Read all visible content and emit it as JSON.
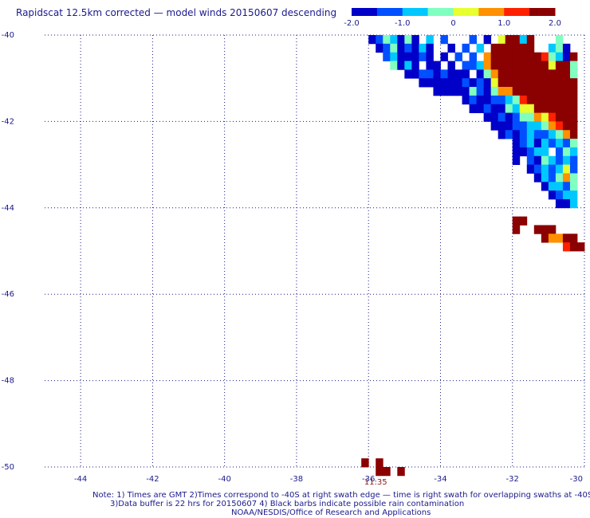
{
  "chart_data": {
    "type": "heatmap",
    "title": "Rapidscat 12.5km corrected — model winds 20150607 descending",
    "xlabel": "",
    "ylabel": "",
    "xlim": [
      -45,
      -30
    ],
    "ylim": [
      -50,
      -40
    ],
    "x_ticks": [
      -44,
      -42,
      -40,
      -38,
      -36,
      -34,
      -32,
      -30
    ],
    "y_ticks": [
      -40,
      -42,
      -44,
      -46,
      -48,
      -50
    ],
    "x_tick_labels": [
      "-44",
      "-42",
      "-40",
      "-38",
      "-36",
      "-34",
      "-32",
      "-30"
    ],
    "y_tick_labels": [
      "-40",
      "-42",
      "-44",
      "-46",
      "-48",
      "-50"
    ],
    "grid": true,
    "colorbar": {
      "range": [
        -2.0,
        2.0
      ],
      "tick_values": [
        -2.0,
        -1.0,
        0,
        1.0,
        2.0
      ],
      "tick_labels": [
        "-2.0",
        "-1.0",
        "0",
        "1.0",
        "2.0"
      ],
      "colors": [
        "#0000c8",
        "#0050ff",
        "#00c8ff",
        "#80ffc0",
        "#e8ff30",
        "#ff9000",
        "#ff2000",
        "#8b0000"
      ]
    },
    "cell_size_deg": 0.2,
    "swath_cells": [
      [
        -35.9,
        -40.1,
        -2.0
      ],
      [
        -35.7,
        -40.1,
        -1.5
      ],
      [
        -35.5,
        -40.1,
        -0.3
      ],
      [
        -35.3,
        -40.1,
        -0.7
      ],
      [
        -35.1,
        -40.1,
        -1.8
      ],
      [
        -34.9,
        -40.1,
        -0.1
      ],
      [
        -34.7,
        -40.1,
        -2.0
      ],
      [
        -34.3,
        -40.1,
        -1.0
      ],
      [
        -33.9,
        -40.1,
        -1.3
      ],
      [
        -33.1,
        -40.1,
        -1.2
      ],
      [
        -32.7,
        -40.1,
        -1.8
      ],
      [
        -32.3,
        -40.1,
        0.3
      ],
      [
        -32.1,
        -40.1,
        2.0
      ],
      [
        -31.9,
        -40.1,
        1.7
      ],
      [
        -31.7,
        -40.1,
        -0.6
      ],
      [
        -31.5,
        -40.1,
        1.9
      ],
      [
        -30.7,
        -40.1,
        -0.2
      ],
      [
        -35.7,
        -40.3,
        -1.8
      ],
      [
        -35.5,
        -40.3,
        -1.2
      ],
      [
        -35.3,
        -40.3,
        -0.5
      ],
      [
        -35.1,
        -40.3,
        -1.6
      ],
      [
        -34.9,
        -40.3,
        -1.4
      ],
      [
        -34.7,
        -40.3,
        -2.0
      ],
      [
        -34.5,
        -40.3,
        -0.8
      ],
      [
        -34.3,
        -40.3,
        -1.7
      ],
      [
        -33.7,
        -40.3,
        -2.0
      ],
      [
        -33.3,
        -40.3,
        -1.1
      ],
      [
        -32.9,
        -40.3,
        -0.9
      ],
      [
        -32.5,
        -40.3,
        2.0
      ],
      [
        -32.3,
        -40.3,
        2.0
      ],
      [
        -32.1,
        -40.3,
        2.0
      ],
      [
        -31.9,
        -40.3,
        2.0
      ],
      [
        -31.7,
        -40.3,
        2.0
      ],
      [
        -31.5,
        -40.3,
        1.7
      ],
      [
        -30.9,
        -40.3,
        -0.9
      ],
      [
        -30.7,
        -40.3,
        -0.5
      ],
      [
        -30.5,
        -40.3,
        -2.0
      ],
      [
        -35.5,
        -40.5,
        -1.1
      ],
      [
        -35.3,
        -40.5,
        -0.9
      ],
      [
        -35.1,
        -40.5,
        -2.0
      ],
      [
        -34.9,
        -40.5,
        -1.9
      ],
      [
        -34.7,
        -40.5,
        -1.6
      ],
      [
        -34.5,
        -40.5,
        -1.3
      ],
      [
        -34.3,
        -40.5,
        -1.8
      ],
      [
        -33.9,
        -40.5,
        -1.7
      ],
      [
        -33.5,
        -40.5,
        -1.4
      ],
      [
        -33.1,
        -40.5,
        -1.3
      ],
      [
        -32.7,
        -40.5,
        0.7
      ],
      [
        -32.5,
        -40.5,
        2.0
      ],
      [
        -32.3,
        -40.5,
        2.0
      ],
      [
        -32.1,
        -40.5,
        2.0
      ],
      [
        -31.9,
        -40.5,
        2.0
      ],
      [
        -31.7,
        -40.5,
        2.0
      ],
      [
        -31.5,
        -40.5,
        2.0
      ],
      [
        -31.3,
        -40.5,
        1.9
      ],
      [
        -31.1,
        -40.5,
        1.2
      ],
      [
        -30.9,
        -40.5,
        -0.4
      ],
      [
        -30.7,
        -40.5,
        -0.7
      ],
      [
        -30.5,
        -40.5,
        -1.9
      ],
      [
        -30.3,
        -40.5,
        1.8
      ],
      [
        -35.3,
        -40.7,
        -0.4
      ],
      [
        -35.1,
        -40.7,
        -2.0
      ],
      [
        -34.9,
        -40.7,
        -0.6
      ],
      [
        -34.7,
        -40.7,
        -1.9
      ],
      [
        -34.3,
        -40.7,
        -1.8
      ],
      [
        -34.1,
        -40.7,
        -2.0
      ],
      [
        -33.7,
        -40.7,
        -2.0
      ],
      [
        -33.3,
        -40.7,
        -1.5
      ],
      [
        -33.1,
        -40.7,
        -1.2
      ],
      [
        -32.9,
        -40.7,
        -0.6
      ],
      [
        -32.7,
        -40.7,
        0.8
      ],
      [
        -32.5,
        -40.7,
        1.8
      ],
      [
        -32.3,
        -40.7,
        2.0
      ],
      [
        -32.1,
        -40.7,
        2.0
      ],
      [
        -31.9,
        -40.7,
        1.7
      ],
      [
        -31.7,
        -40.7,
        1.9
      ],
      [
        -31.5,
        -40.7,
        2.0
      ],
      [
        -31.3,
        -40.7,
        2.0
      ],
      [
        -31.1,
        -40.7,
        2.0
      ],
      [
        -30.9,
        -40.7,
        0.3
      ],
      [
        -30.7,
        -40.7,
        2.0
      ],
      [
        -30.5,
        -40.7,
        1.6
      ],
      [
        -30.3,
        -40.7,
        -0.1
      ],
      [
        -34.9,
        -40.9,
        -1.9
      ],
      [
        -34.7,
        -40.9,
        -2.0
      ],
      [
        -34.5,
        -40.9,
        -1.1
      ],
      [
        -34.3,
        -40.9,
        -1.5
      ],
      [
        -34.1,
        -40.9,
        -2.0
      ],
      [
        -33.9,
        -40.9,
        -1.1
      ],
      [
        -33.7,
        -40.9,
        -2.0
      ],
      [
        -33.5,
        -40.9,
        -2.0
      ],
      [
        -33.3,
        -40.9,
        -1.8
      ],
      [
        -32.9,
        -40.9,
        -2.0
      ],
      [
        -32.7,
        -40.9,
        -0.4
      ],
      [
        -32.5,
        -40.9,
        0.7
      ],
      [
        -32.3,
        -40.9,
        2.0
      ],
      [
        -32.1,
        -40.9,
        2.0
      ],
      [
        -31.9,
        -40.9,
        2.0
      ],
      [
        -31.7,
        -40.9,
        1.8
      ],
      [
        -31.5,
        -40.9,
        2.0
      ],
      [
        -31.3,
        -40.9,
        2.0
      ],
      [
        -31.1,
        -40.9,
        2.0
      ],
      [
        -30.9,
        -40.9,
        2.0
      ],
      [
        -30.7,
        -40.9,
        2.0
      ],
      [
        -30.5,
        -40.9,
        1.7
      ],
      [
        -30.3,
        -40.9,
        -0.3
      ],
      [
        -34.5,
        -41.1,
        -2.0
      ],
      [
        -34.3,
        -41.1,
        -1.8
      ],
      [
        -34.1,
        -41.1,
        -2.0
      ],
      [
        -33.9,
        -41.1,
        -1.9
      ],
      [
        -33.7,
        -41.1,
        -2.0
      ],
      [
        -33.5,
        -41.1,
        -1.9
      ],
      [
        -33.3,
        -41.1,
        -1.2
      ],
      [
        -33.1,
        -41.1,
        -1.7
      ],
      [
        -32.9,
        -41.1,
        -1.3
      ],
      [
        -32.7,
        -41.1,
        -2.0
      ],
      [
        -32.5,
        -41.1,
        0.0
      ],
      [
        -32.3,
        -41.1,
        1.8
      ],
      [
        -32.1,
        -41.1,
        1.6
      ],
      [
        -31.9,
        -41.1,
        2.0
      ],
      [
        -31.7,
        -41.1,
        2.0
      ],
      [
        -31.5,
        -41.1,
        2.0
      ],
      [
        -31.3,
        -41.1,
        2.0
      ],
      [
        -31.1,
        -41.1,
        2.0
      ],
      [
        -30.9,
        -41.1,
        2.0
      ],
      [
        -30.7,
        -41.1,
        2.0
      ],
      [
        -30.5,
        -41.1,
        2.0
      ],
      [
        -30.3,
        -41.1,
        2.0
      ],
      [
        -34.1,
        -41.3,
        -1.8
      ],
      [
        -33.9,
        -41.3,
        -2.0
      ],
      [
        -33.7,
        -41.3,
        -2.0
      ],
      [
        -33.5,
        -41.3,
        -1.7
      ],
      [
        -33.3,
        -41.3,
        -2.0
      ],
      [
        -33.1,
        -41.3,
        -0.1
      ],
      [
        -32.9,
        -41.3,
        -1.5
      ],
      [
        -32.7,
        -41.3,
        -1.7
      ],
      [
        -32.5,
        -41.3,
        -0.5
      ],
      [
        -32.3,
        -41.3,
        0.6
      ],
      [
        -32.1,
        -41.3,
        0.9
      ],
      [
        -31.9,
        -41.3,
        2.0
      ],
      [
        -31.7,
        -41.3,
        2.0
      ],
      [
        -31.5,
        -41.3,
        2.0
      ],
      [
        -31.3,
        -41.3,
        2.0
      ],
      [
        -31.1,
        -41.3,
        2.0
      ],
      [
        -30.9,
        -41.3,
        2.0
      ],
      [
        -30.7,
        -41.3,
        2.0
      ],
      [
        -30.5,
        -41.3,
        2.0
      ],
      [
        -30.3,
        -41.3,
        2.0
      ],
      [
        -33.3,
        -41.5,
        -2.0
      ],
      [
        -33.1,
        -41.5,
        -1.1
      ],
      [
        -32.9,
        -41.5,
        -1.9
      ],
      [
        -32.7,
        -41.5,
        -1.8
      ],
      [
        -32.5,
        -41.5,
        -1.4
      ],
      [
        -32.3,
        -41.5,
        -1.1
      ],
      [
        -32.1,
        -41.5,
        -0.7
      ],
      [
        -31.9,
        -41.5,
        -0.3
      ],
      [
        -31.7,
        -41.5,
        1.0
      ],
      [
        -31.5,
        -41.5,
        1.9
      ],
      [
        -31.3,
        -41.5,
        2.0
      ],
      [
        -31.1,
        -41.5,
        2.0
      ],
      [
        -30.9,
        -41.5,
        2.0
      ],
      [
        -30.7,
        -41.5,
        2.0
      ],
      [
        -30.5,
        -41.5,
        2.0
      ],
      [
        -30.3,
        -41.5,
        2.0
      ],
      [
        -33.1,
        -41.7,
        -1.9
      ],
      [
        -32.9,
        -41.7,
        -2.0
      ],
      [
        -32.7,
        -41.7,
        -1.3
      ],
      [
        -32.5,
        -41.7,
        -2.0
      ],
      [
        -32.3,
        -41.7,
        -1.6
      ],
      [
        -32.1,
        -41.7,
        -0.4
      ],
      [
        -31.9,
        -41.7,
        -0.6
      ],
      [
        -31.7,
        -41.7,
        0.3
      ],
      [
        -31.5,
        -41.7,
        0.4
      ],
      [
        -31.3,
        -41.7,
        1.8
      ],
      [
        -31.1,
        -41.7,
        2.0
      ],
      [
        -30.9,
        -41.7,
        2.0
      ],
      [
        -30.7,
        -41.7,
        2.0
      ],
      [
        -30.5,
        -41.7,
        2.0
      ],
      [
        -30.3,
        -41.7,
        2.0
      ],
      [
        -32.7,
        -41.9,
        -2.0
      ],
      [
        -32.5,
        -41.9,
        -2.0
      ],
      [
        -32.3,
        -41.9,
        -1.2
      ],
      [
        -32.1,
        -41.9,
        -1.6
      ],
      [
        -31.9,
        -41.9,
        -1.4
      ],
      [
        -31.7,
        -41.9,
        -0.4
      ],
      [
        -31.5,
        -41.9,
        -0.3
      ],
      [
        -31.3,
        -41.9,
        0.5
      ],
      [
        -31.1,
        -41.9,
        0.4
      ],
      [
        -30.9,
        -41.9,
        1.2
      ],
      [
        -30.7,
        -41.9,
        1.8
      ],
      [
        -30.5,
        -41.9,
        2.0
      ],
      [
        -30.3,
        -41.9,
        2.0
      ],
      [
        -32.5,
        -42.1,
        -2.0
      ],
      [
        -32.3,
        -42.1,
        -1.9
      ],
      [
        -32.1,
        -42.1,
        -2.0
      ],
      [
        -31.9,
        -42.1,
        -1.5
      ],
      [
        -31.7,
        -42.1,
        -1.3
      ],
      [
        -31.5,
        -42.1,
        -1.0
      ],
      [
        -31.3,
        -42.1,
        -0.9
      ],
      [
        -31.1,
        -42.1,
        -0.2
      ],
      [
        -30.9,
        -42.1,
        0.5
      ],
      [
        -30.7,
        -42.1,
        1.4
      ],
      [
        -30.5,
        -42.1,
        1.8
      ],
      [
        -30.3,
        -42.1,
        2.0
      ],
      [
        -32.3,
        -42.3,
        -2.0
      ],
      [
        -32.1,
        -42.3,
        -1.5
      ],
      [
        -31.9,
        -42.3,
        -1.8
      ],
      [
        -31.7,
        -42.3,
        -1.2
      ],
      [
        -31.5,
        -42.3,
        -0.7
      ],
      [
        -31.3,
        -42.3,
        -1.1
      ],
      [
        -31.1,
        -42.3,
        -1.4
      ],
      [
        -30.9,
        -42.3,
        -1.0
      ],
      [
        -30.7,
        -42.3,
        -0.5
      ],
      [
        -30.5,
        -42.3,
        0.8
      ],
      [
        -30.3,
        -42.3,
        1.5
      ],
      [
        -31.9,
        -42.5,
        -2.0
      ],
      [
        -31.7,
        -42.5,
        -1.3
      ],
      [
        -31.5,
        -42.5,
        -0.6
      ],
      [
        -31.3,
        -42.5,
        -1.7
      ],
      [
        -31.1,
        -42.5,
        -0.9
      ],
      [
        -30.9,
        -42.5,
        -1.4
      ],
      [
        -30.7,
        -42.5,
        -0.7
      ],
      [
        -30.5,
        -42.5,
        -1.2
      ],
      [
        -30.3,
        -42.5,
        -0.4
      ],
      [
        -31.9,
        -42.7,
        -1.6
      ],
      [
        -31.7,
        -42.7,
        -2.0
      ],
      [
        -31.5,
        -42.7,
        -1.1
      ],
      [
        -31.3,
        -42.7,
        -0.9
      ],
      [
        -31.1,
        -42.7,
        -0.6
      ],
      [
        -30.7,
        -42.7,
        -1.5
      ],
      [
        -30.5,
        -42.7,
        -0.2
      ],
      [
        -30.3,
        -42.7,
        -0.8
      ],
      [
        -31.9,
        -42.9,
        -2.0
      ],
      [
        -31.5,
        -42.9,
        -1.4
      ],
      [
        -31.3,
        -42.9,
        -1.8
      ],
      [
        -31.1,
        -42.9,
        -0.4
      ],
      [
        -30.9,
        -42.9,
        -1.0
      ],
      [
        -30.7,
        -42.9,
        -1.3
      ],
      [
        -30.5,
        -42.9,
        -0.6
      ],
      [
        -30.3,
        -42.9,
        -1.1
      ],
      [
        -31.5,
        -43.1,
        -2.0
      ],
      [
        -31.3,
        -43.1,
        -1.5
      ],
      [
        -31.1,
        -43.1,
        -0.8
      ],
      [
        -30.9,
        -43.1,
        -1.2
      ],
      [
        -30.7,
        -43.1,
        -0.9
      ],
      [
        -30.5,
        -43.1,
        0.3
      ],
      [
        -30.3,
        -43.1,
        -1.5
      ],
      [
        -31.3,
        -43.3,
        -1.9
      ],
      [
        -31.1,
        -43.3,
        -0.9
      ],
      [
        -30.9,
        -43.3,
        -1.3
      ],
      [
        -30.7,
        -43.3,
        -0.5
      ],
      [
        -30.5,
        -43.3,
        0.6
      ],
      [
        -30.3,
        -43.3,
        -0.2
      ],
      [
        -31.1,
        -43.5,
        -1.7
      ],
      [
        -30.9,
        -43.5,
        -1.0
      ],
      [
        -30.7,
        -43.5,
        -0.7
      ],
      [
        -30.5,
        -43.5,
        -1.1
      ],
      [
        -30.3,
        -43.5,
        -0.4
      ],
      [
        -30.9,
        -43.7,
        -2.0
      ],
      [
        -30.7,
        -43.7,
        -1.5
      ],
      [
        -30.5,
        -43.7,
        -0.6
      ],
      [
        -30.3,
        -43.7,
        -0.9
      ],
      [
        -30.7,
        -43.9,
        -2.0
      ],
      [
        -30.5,
        -43.9,
        -1.6
      ],
      [
        -30.3,
        -43.9,
        -0.8
      ]
    ],
    "rain_cells": [],
    "fragments": [
      [
        -31.9,
        -44.3,
        2.0
      ],
      [
        -31.7,
        -44.3,
        1.9
      ],
      [
        -31.9,
        -44.5,
        2.0
      ],
      [
        -31.3,
        -44.5,
        2.0
      ],
      [
        -31.1,
        -44.5,
        2.0
      ],
      [
        -30.9,
        -44.5,
        2.0
      ],
      [
        -31.1,
        -44.7,
        1.6
      ],
      [
        -30.9,
        -44.7,
        0.6
      ],
      [
        -30.7,
        -44.7,
        0.9
      ],
      [
        -30.5,
        -44.7,
        1.7
      ],
      [
        -30.3,
        -44.7,
        1.8
      ],
      [
        -30.5,
        -44.9,
        1.4
      ],
      [
        -30.3,
        -44.9,
        2.0
      ],
      [
        -30.1,
        -44.9,
        2.0
      ],
      [
        -36.1,
        -49.9,
        2.0
      ],
      [
        -35.7,
        -49.9,
        2.0
      ],
      [
        -35.7,
        -50.1,
        2.0
      ],
      [
        -35.5,
        -50.1,
        2.0
      ],
      [
        -35.1,
        -50.1,
        2.0
      ]
    ],
    "time_annotation": {
      "label": "11:35",
      "lon": -35.8
    }
  },
  "notes": [
    "Note: 1) Times are GMT 2)Times correspond to -40S at right swath edge — time is right swath for overlapping swaths at -40S",
    "3)Data buffer is 22 hrs for 20150607 4) Black barbs indicate possible rain contamination",
    "NOAA/NESDIS/Office of Research and Applications"
  ]
}
